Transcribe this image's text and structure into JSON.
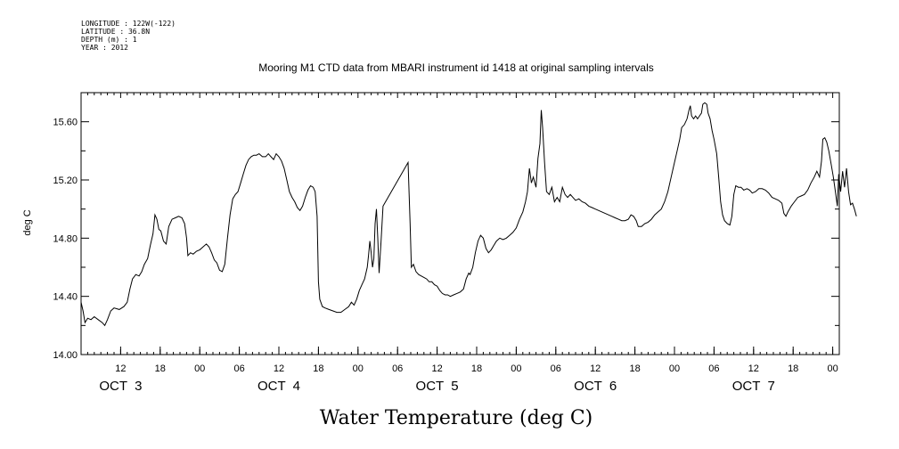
{
  "header": {
    "longitude": "LONGITUDE : 122W(-122)",
    "latitude": "LATITUDE : 36.8N",
    "depth": "DEPTH (m) : 1",
    "year": "YEAR : 2012"
  },
  "chart_data": {
    "type": "line",
    "title": "Mooring M1 CTD data from MBARI instrument id 1418 at original sampling intervals",
    "xlabel": "Water Temperature (deg C)",
    "ylabel": "deg C",
    "x_unit": "hours since OCT 3 00:00",
    "xlim": [
      6.0,
      121.0
    ],
    "ylim": [
      14.0,
      15.8
    ],
    "yticks": [
      "14.00",
      "14.40",
      "14.80",
      "15.20",
      "15.60"
    ],
    "yminor": [
      14.2,
      14.6,
      15.0,
      15.4
    ],
    "xticks": [
      {
        "h": 12,
        "label": "12"
      },
      {
        "h": 18,
        "label": "18"
      },
      {
        "h": 24,
        "label": "00"
      },
      {
        "h": 30,
        "label": "06"
      },
      {
        "h": 36,
        "label": "12"
      },
      {
        "h": 42,
        "label": "18"
      },
      {
        "h": 48,
        "label": "00"
      },
      {
        "h": 54,
        "label": "06"
      },
      {
        "h": 60,
        "label": "12"
      },
      {
        "h": 66,
        "label": "18"
      },
      {
        "h": 72,
        "label": "00"
      },
      {
        "h": 78,
        "label": "06"
      },
      {
        "h": 84,
        "label": "12"
      },
      {
        "h": 90,
        "label": "18"
      },
      {
        "h": 96,
        "label": "00"
      },
      {
        "h": 102,
        "label": "06"
      },
      {
        "h": 108,
        "label": "12"
      },
      {
        "h": 114,
        "label": "18"
      },
      {
        "h": 120,
        "label": "00"
      }
    ],
    "day_labels": [
      {
        "h": 12,
        "label": "OCT  3"
      },
      {
        "h": 36,
        "label": "OCT  4"
      },
      {
        "h": 60,
        "label": "OCT  5"
      },
      {
        "h": 84,
        "label": "OCT  6"
      },
      {
        "h": 108,
        "label": "OCT  7"
      }
    ],
    "series": [
      {
        "color": "#000000",
        "points": [
          [
            6.0,
            14.36
          ],
          [
            6.3,
            14.3
          ],
          [
            6.6,
            14.22
          ],
          [
            7.0,
            14.25
          ],
          [
            7.5,
            14.24
          ],
          [
            8.0,
            14.26
          ],
          [
            8.6,
            14.24
          ],
          [
            9.2,
            14.22
          ],
          [
            9.6,
            14.2
          ],
          [
            10.0,
            14.24
          ],
          [
            10.5,
            14.3
          ],
          [
            11.0,
            14.32
          ],
          [
            11.8,
            14.31
          ],
          [
            12.5,
            14.33
          ],
          [
            13.0,
            14.36
          ],
          [
            13.4,
            14.45
          ],
          [
            13.8,
            14.52
          ],
          [
            14.3,
            14.55
          ],
          [
            14.8,
            14.54
          ],
          [
            15.2,
            14.57
          ],
          [
            15.6,
            14.62
          ],
          [
            16.1,
            14.66
          ],
          [
            16.5,
            14.75
          ],
          [
            16.9,
            14.83
          ],
          [
            17.2,
            14.96
          ],
          [
            17.5,
            14.93
          ],
          [
            17.8,
            14.86
          ],
          [
            18.1,
            14.85
          ],
          [
            18.5,
            14.78
          ],
          [
            18.9,
            14.76
          ],
          [
            19.3,
            14.88
          ],
          [
            19.8,
            14.93
          ],
          [
            20.3,
            14.94
          ],
          [
            20.8,
            14.95
          ],
          [
            21.3,
            14.94
          ],
          [
            21.7,
            14.9
          ],
          [
            22.0,
            14.8
          ],
          [
            22.2,
            14.68
          ],
          [
            22.6,
            14.7
          ],
          [
            23.0,
            14.69
          ],
          [
            23.5,
            14.71
          ],
          [
            24.0,
            14.72
          ],
          [
            24.5,
            14.74
          ],
          [
            25.0,
            14.76
          ],
          [
            25.4,
            14.74
          ],
          [
            25.8,
            14.7
          ],
          [
            26.2,
            14.65
          ],
          [
            26.6,
            14.63
          ],
          [
            27.0,
            14.58
          ],
          [
            27.4,
            14.57
          ],
          [
            27.8,
            14.62
          ],
          [
            28.2,
            14.8
          ],
          [
            28.6,
            14.96
          ],
          [
            29.0,
            15.07
          ],
          [
            29.4,
            15.1
          ],
          [
            29.8,
            15.12
          ],
          [
            30.2,
            15.18
          ],
          [
            30.6,
            15.24
          ],
          [
            31.0,
            15.3
          ],
          [
            31.4,
            15.34
          ],
          [
            31.8,
            15.36
          ],
          [
            32.2,
            15.37
          ],
          [
            32.6,
            15.37
          ],
          [
            33.0,
            15.38
          ],
          [
            33.5,
            15.36
          ],
          [
            34.0,
            15.36
          ],
          [
            34.4,
            15.38
          ],
          [
            34.8,
            15.36
          ],
          [
            35.2,
            15.34
          ],
          [
            35.6,
            15.38
          ],
          [
            36.0,
            15.36
          ],
          [
            36.4,
            15.33
          ],
          [
            36.8,
            15.28
          ],
          [
            37.2,
            15.2
          ],
          [
            37.6,
            15.12
          ],
          [
            38.0,
            15.08
          ],
          [
            38.4,
            15.05
          ],
          [
            38.8,
            15.01
          ],
          [
            39.2,
            14.99
          ],
          [
            39.6,
            15.02
          ],
          [
            40.0,
            15.08
          ],
          [
            40.4,
            15.13
          ],
          [
            40.8,
            15.16
          ],
          [
            41.2,
            15.15
          ],
          [
            41.5,
            15.12
          ],
          [
            41.8,
            14.95
          ],
          [
            42.0,
            14.5
          ],
          [
            42.2,
            14.38
          ],
          [
            42.6,
            14.33
          ],
          [
            43.0,
            14.32
          ],
          [
            43.6,
            14.31
          ],
          [
            44.2,
            14.3
          ],
          [
            44.8,
            14.29
          ],
          [
            45.4,
            14.29
          ],
          [
            46.0,
            14.31
          ],
          [
            46.6,
            14.33
          ],
          [
            47.0,
            14.36
          ],
          [
            47.4,
            14.34
          ],
          [
            47.8,
            14.38
          ],
          [
            48.2,
            14.44
          ],
          [
            48.6,
            14.48
          ],
          [
            49.0,
            14.52
          ],
          [
            49.4,
            14.6
          ],
          [
            49.6,
            14.68
          ],
          [
            49.8,
            14.78
          ],
          [
            50.0,
            14.7
          ],
          [
            50.2,
            14.6
          ],
          [
            50.4,
            14.66
          ],
          [
            50.6,
            14.9
          ],
          [
            50.8,
            15.0
          ],
          [
            51.0,
            14.8
          ],
          [
            51.2,
            14.56
          ],
          [
            51.5,
            14.78
          ],
          [
            51.8,
            15.02
          ],
          [
            55.6,
            15.32
          ],
          [
            55.9,
            14.9
          ],
          [
            56.1,
            14.6
          ],
          [
            56.4,
            14.62
          ],
          [
            56.8,
            14.57
          ],
          [
            57.2,
            14.55
          ],
          [
            57.6,
            14.54
          ],
          [
            58.0,
            14.53
          ],
          [
            58.4,
            14.52
          ],
          [
            58.8,
            14.5
          ],
          [
            59.2,
            14.5
          ],
          [
            59.6,
            14.48
          ],
          [
            60.0,
            14.47
          ],
          [
            60.4,
            14.44
          ],
          [
            60.8,
            14.42
          ],
          [
            61.2,
            14.41
          ],
          [
            61.6,
            14.41
          ],
          [
            62.0,
            14.4
          ],
          [
            62.5,
            14.41
          ],
          [
            63.0,
            14.42
          ],
          [
            63.5,
            14.43
          ],
          [
            64.0,
            14.45
          ],
          [
            64.4,
            14.52
          ],
          [
            64.8,
            14.56
          ],
          [
            65.0,
            14.55
          ],
          [
            65.4,
            14.6
          ],
          [
            65.8,
            14.7
          ],
          [
            66.2,
            14.78
          ],
          [
            66.6,
            14.82
          ],
          [
            67.0,
            14.8
          ],
          [
            67.4,
            14.73
          ],
          [
            67.8,
            14.7
          ],
          [
            68.2,
            14.72
          ],
          [
            68.6,
            14.75
          ],
          [
            69.0,
            14.78
          ],
          [
            69.5,
            14.8
          ],
          [
            70.0,
            14.79
          ],
          [
            70.5,
            14.8
          ],
          [
            71.0,
            14.82
          ],
          [
            71.5,
            14.84
          ],
          [
            72.0,
            14.87
          ],
          [
            72.5,
            14.93
          ],
          [
            73.0,
            14.98
          ],
          [
            73.4,
            15.05
          ],
          [
            73.7,
            15.12
          ],
          [
            74.0,
            15.28
          ],
          [
            74.3,
            15.18
          ],
          [
            74.6,
            15.22
          ],
          [
            75.0,
            15.15
          ],
          [
            75.3,
            15.35
          ],
          [
            75.6,
            15.45
          ],
          [
            75.8,
            15.68
          ],
          [
            76.0,
            15.56
          ],
          [
            76.3,
            15.32
          ],
          [
            76.6,
            15.12
          ],
          [
            77.0,
            15.1
          ],
          [
            77.4,
            15.15
          ],
          [
            77.8,
            15.05
          ],
          [
            78.2,
            15.08
          ],
          [
            78.6,
            15.05
          ],
          [
            79.0,
            15.15
          ],
          [
            79.4,
            15.1
          ],
          [
            79.8,
            15.08
          ],
          [
            80.2,
            15.1
          ],
          [
            80.6,
            15.08
          ],
          [
            81.0,
            15.06
          ],
          [
            81.5,
            15.07
          ],
          [
            82.0,
            15.05
          ],
          [
            82.5,
            15.04
          ],
          [
            83.0,
            15.02
          ],
          [
            83.5,
            15.01
          ],
          [
            84.0,
            15.0
          ],
          [
            84.5,
            14.99
          ],
          [
            85.0,
            14.98
          ],
          [
            85.5,
            14.97
          ],
          [
            86.0,
            14.96
          ],
          [
            86.5,
            14.95
          ],
          [
            87.0,
            14.94
          ],
          [
            87.5,
            14.93
          ],
          [
            88.0,
            14.92
          ],
          [
            88.5,
            14.92
          ],
          [
            89.0,
            14.93
          ],
          [
            89.4,
            14.96
          ],
          [
            89.8,
            14.95
          ],
          [
            90.2,
            14.92
          ],
          [
            90.5,
            14.88
          ],
          [
            91.0,
            14.88
          ],
          [
            91.5,
            14.9
          ],
          [
            92.0,
            14.91
          ],
          [
            92.5,
            14.93
          ],
          [
            93.0,
            14.96
          ],
          [
            93.5,
            14.98
          ],
          [
            94.0,
            15.0
          ],
          [
            94.5,
            15.05
          ],
          [
            95.0,
            15.12
          ],
          [
            95.5,
            15.22
          ],
          [
            96.0,
            15.32
          ],
          [
            96.4,
            15.4
          ],
          [
            96.8,
            15.48
          ],
          [
            97.1,
            15.56
          ],
          [
            97.5,
            15.58
          ],
          [
            97.9,
            15.62
          ],
          [
            98.2,
            15.68
          ],
          [
            98.4,
            15.71
          ],
          [
            98.6,
            15.64
          ],
          [
            98.9,
            15.62
          ],
          [
            99.2,
            15.64
          ],
          [
            99.5,
            15.62
          ],
          [
            99.8,
            15.64
          ],
          [
            100.1,
            15.66
          ],
          [
            100.3,
            15.72
          ],
          [
            100.6,
            15.73
          ],
          [
            100.9,
            15.72
          ],
          [
            101.1,
            15.66
          ],
          [
            101.4,
            15.62
          ],
          [
            101.7,
            15.54
          ],
          [
            102.0,
            15.48
          ],
          [
            102.4,
            15.38
          ],
          [
            102.7,
            15.22
          ],
          [
            103.0,
            15.05
          ],
          [
            103.3,
            14.96
          ],
          [
            103.6,
            14.92
          ],
          [
            104.0,
            14.9
          ],
          [
            104.4,
            14.89
          ],
          [
            104.7,
            14.95
          ],
          [
            105.0,
            15.1
          ],
          [
            105.3,
            15.16
          ],
          [
            105.7,
            15.15
          ],
          [
            106.1,
            15.15
          ],
          [
            106.5,
            15.13
          ],
          [
            107.0,
            15.14
          ],
          [
            107.4,
            15.13
          ],
          [
            107.8,
            15.11
          ],
          [
            108.3,
            15.12
          ],
          [
            108.8,
            15.14
          ],
          [
            109.3,
            15.14
          ],
          [
            109.8,
            15.13
          ],
          [
            110.3,
            15.11
          ],
          [
            110.8,
            15.08
          ],
          [
            111.3,
            15.07
          ],
          [
            111.8,
            15.06
          ],
          [
            112.3,
            15.04
          ],
          [
            112.6,
            14.97
          ],
          [
            112.9,
            14.95
          ],
          [
            113.2,
            14.98
          ],
          [
            113.7,
            15.02
          ],
          [
            114.2,
            15.05
          ],
          [
            114.7,
            15.08
          ],
          [
            115.2,
            15.09
          ],
          [
            115.7,
            15.1
          ],
          [
            116.2,
            15.13
          ],
          [
            116.7,
            15.18
          ],
          [
            117.2,
            15.22
          ],
          [
            117.6,
            15.26
          ],
          [
            118.0,
            15.22
          ],
          [
            118.3,
            15.33
          ],
          [
            118.5,
            15.48
          ],
          [
            118.8,
            15.49
          ],
          [
            119.1,
            15.46
          ],
          [
            119.4,
            15.4
          ],
          [
            119.8,
            15.3
          ],
          [
            120.1,
            15.22
          ],
          [
            120.4,
            15.12
          ],
          [
            120.7,
            15.02
          ],
          [
            120.9,
            15.24
          ],
          [
            121.2,
            15.12
          ],
          [
            121.5,
            15.26
          ],
          [
            121.8,
            15.15
          ],
          [
            122.1,
            15.28
          ],
          [
            122.4,
            15.12
          ],
          [
            122.7,
            15.03
          ],
          [
            123.0,
            15.04
          ],
          [
            123.3,
            15.0
          ],
          [
            123.6,
            14.95
          ]
        ]
      }
    ]
  }
}
